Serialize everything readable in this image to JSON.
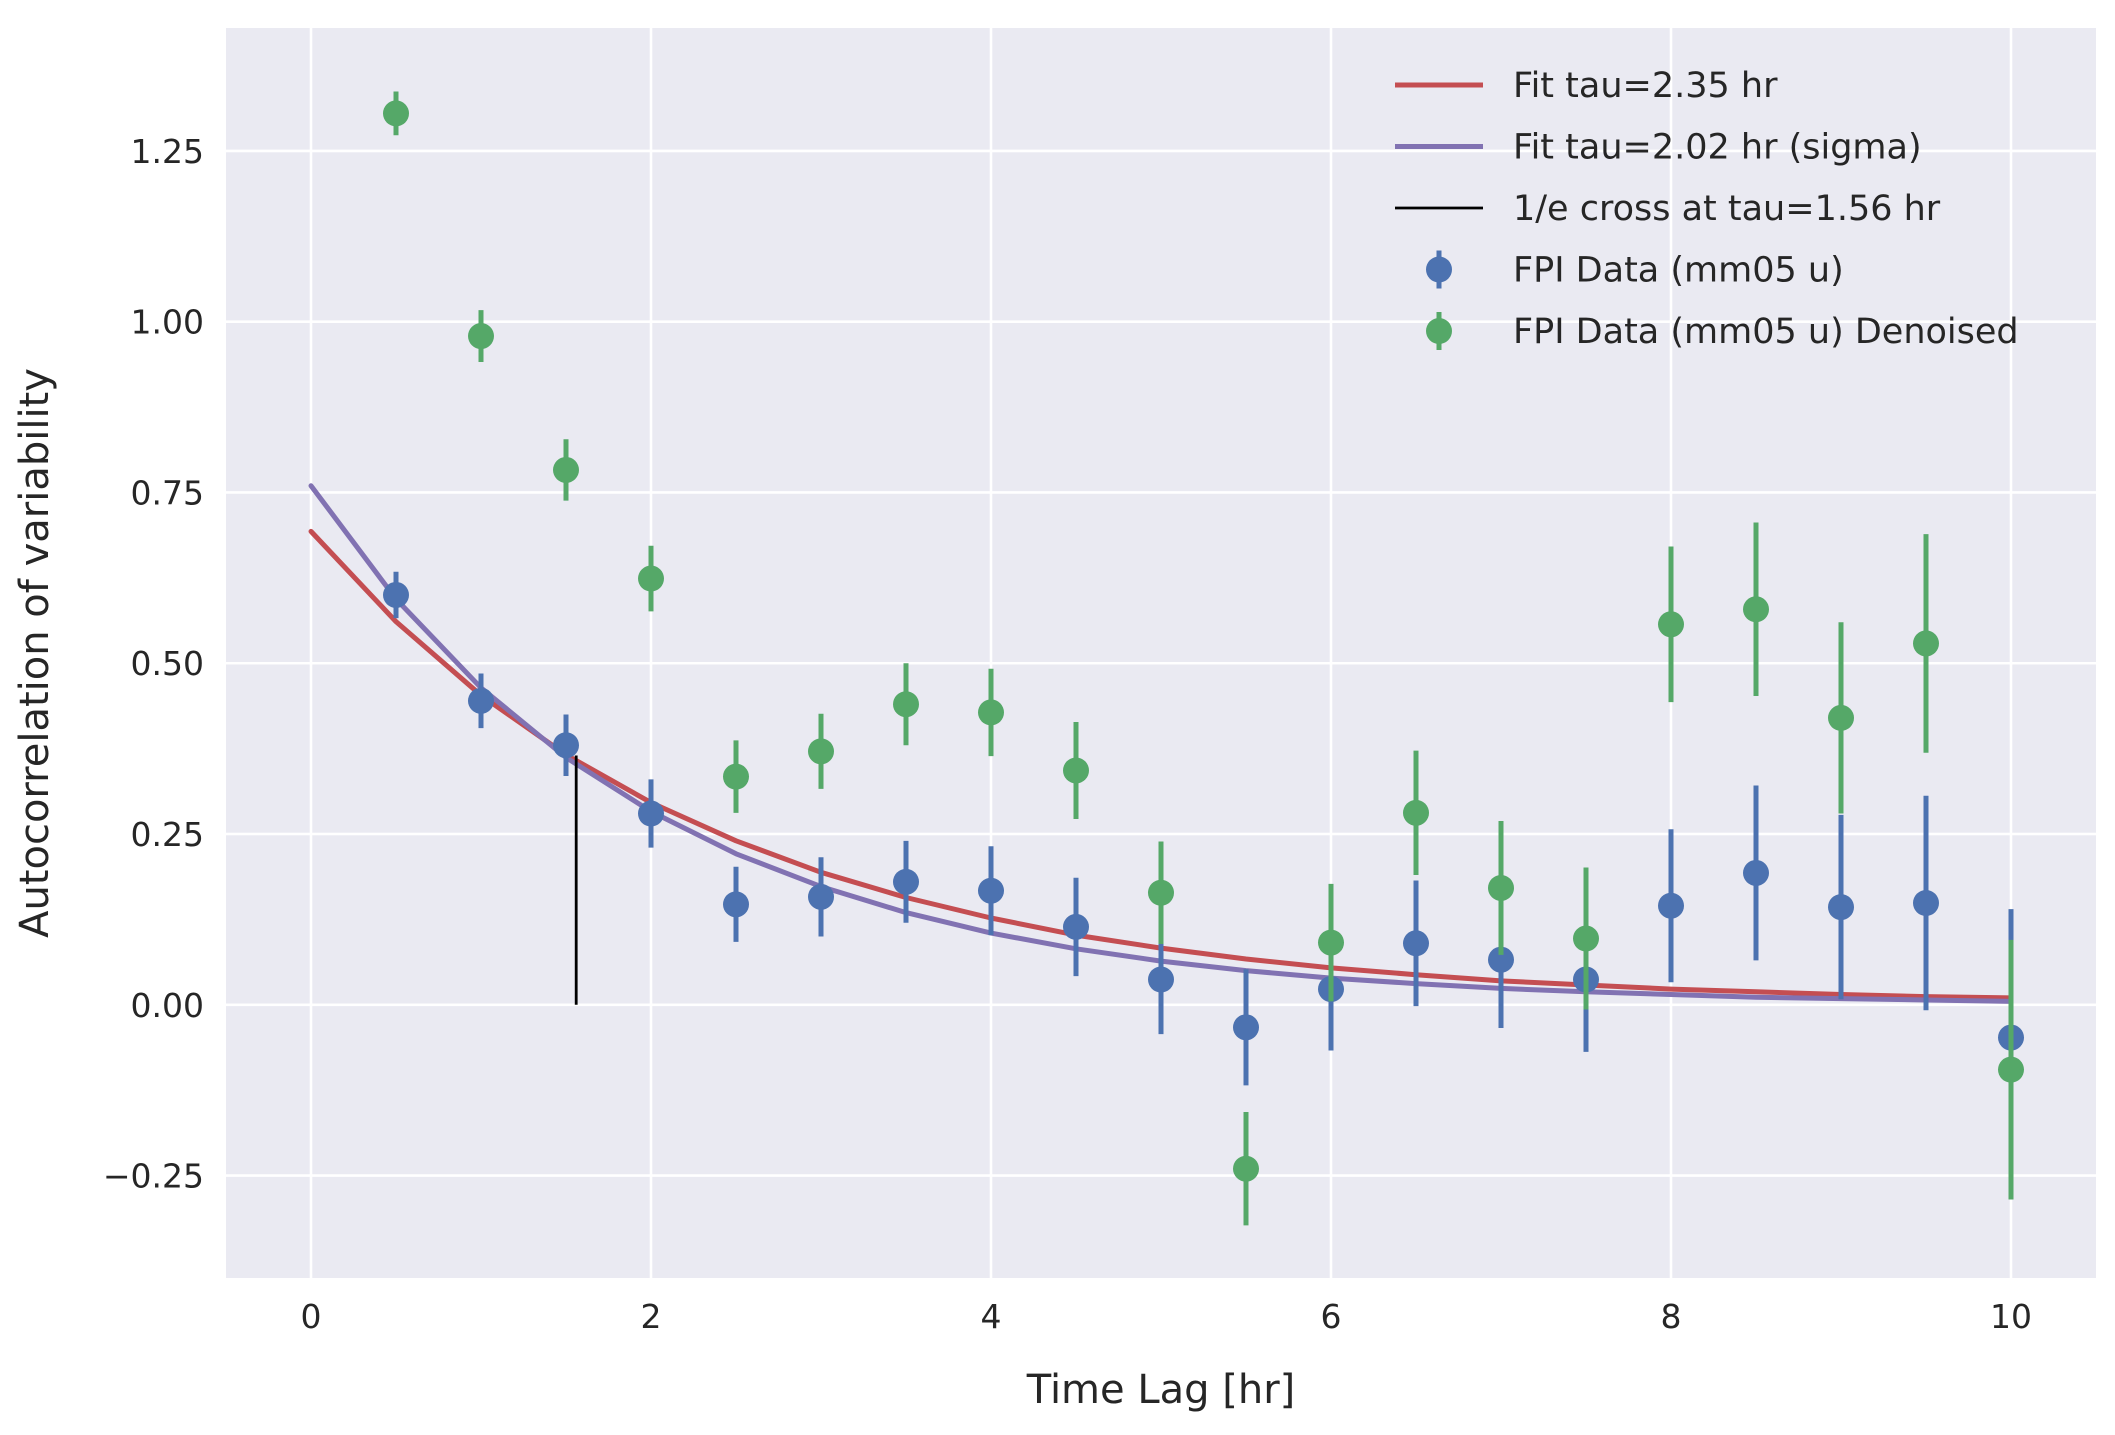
{
  "chart_data": {
    "type": "scatter",
    "xlabel": "Time Lag [hr]",
    "ylabel": "Autocorrelation of variability",
    "xlim": [
      -0.5,
      10.5
    ],
    "ylim": [
      -0.4,
      1.43
    ],
    "xticks": [
      0,
      2,
      4,
      6,
      8,
      10
    ],
    "yticks": [
      -0.25,
      0.0,
      0.25,
      0.5,
      0.75,
      1.0,
      1.25
    ],
    "xtick_labels": [
      "0",
      "2",
      "4",
      "6",
      "8",
      "10"
    ],
    "ytick_labels": [
      "−0.25",
      "0.00",
      "0.25",
      "0.50",
      "0.75",
      "1.00",
      "1.25"
    ],
    "grid": true,
    "background": "#eaeaf2",
    "legend_location": "upper right",
    "lines": [
      {
        "name": "Fit tau=2.35 hr",
        "color": "#c44e52",
        "x": [
          0,
          0.5,
          1,
          1.5,
          2,
          2.5,
          3,
          3.5,
          4,
          4.5,
          5,
          5.5,
          6,
          6.5,
          7,
          7.5,
          8,
          8.5,
          9,
          9.5,
          10
        ],
        "y": [
          0.693,
          0.561,
          0.453,
          0.366,
          0.296,
          0.24,
          0.194,
          0.157,
          0.127,
          0.102,
          0.083,
          0.067,
          0.054,
          0.044,
          0.035,
          0.029,
          0.023,
          0.019,
          0.015,
          0.012,
          0.01
        ]
      },
      {
        "name": "Fit tau=2.02 hr (sigma)",
        "color": "#8172b2",
        "x": [
          0,
          0.5,
          1,
          1.5,
          2,
          2.5,
          3,
          3.5,
          4,
          4.5,
          5,
          5.5,
          6,
          6.5,
          7,
          7.5,
          8,
          8.5,
          9,
          9.5,
          10
        ],
        "y": [
          0.76,
          0.594,
          0.464,
          0.362,
          0.283,
          0.221,
          0.173,
          0.135,
          0.105,
          0.082,
          0.064,
          0.05,
          0.039,
          0.031,
          0.024,
          0.019,
          0.015,
          0.011,
          0.009,
          0.007,
          0.005
        ]
      }
    ],
    "vline": {
      "name": "1/e cross at tau=1.56 hr",
      "color": "#000000",
      "x": 1.56,
      "y0": 0.0,
      "y1": 0.365
    },
    "series": [
      {
        "name": "FPI Data (mm05 u)",
        "color": "#4c72b0",
        "x": [
          0.5,
          1,
          1.5,
          2,
          2.5,
          3,
          3.5,
          4,
          4.5,
          5,
          5.5,
          6,
          6.5,
          7,
          7.5,
          8,
          8.5,
          9,
          9.5,
          10
        ],
        "y": [
          0.6,
          0.445,
          0.38,
          0.28,
          0.147,
          0.158,
          0.18,
          0.167,
          0.114,
          0.037,
          -0.033,
          0.023,
          0.09,
          0.066,
          0.037,
          0.145,
          0.193,
          0.143,
          0.149,
          -0.048
        ],
        "yerr": [
          0.034,
          0.04,
          0.045,
          0.05,
          0.055,
          0.058,
          0.06,
          0.065,
          0.072,
          0.08,
          0.085,
          0.09,
          0.092,
          0.1,
          0.106,
          0.112,
          0.128,
          0.135,
          0.157,
          0.188
        ]
      },
      {
        "name": "FPI Data (mm05 u) Denoised",
        "color": "#55a868",
        "x": [
          0.5,
          1,
          1.5,
          2,
          2.5,
          3,
          3.5,
          4,
          4.5,
          5,
          5.5,
          6,
          6.5,
          7,
          7.5,
          8,
          8.5,
          9,
          9.5,
          10
        ],
        "y": [
          1.305,
          0.979,
          0.783,
          0.624,
          0.334,
          0.371,
          0.44,
          0.428,
          0.343,
          0.164,
          -0.24,
          0.091,
          0.281,
          0.171,
          0.097,
          0.557,
          0.579,
          0.42,
          0.529,
          -0.095
        ],
        "yerr": [
          0.032,
          0.038,
          0.045,
          0.048,
          0.053,
          0.055,
          0.06,
          0.064,
          0.071,
          0.075,
          0.083,
          0.086,
          0.091,
          0.098,
          0.104,
          0.114,
          0.127,
          0.14,
          0.16,
          0.19
        ]
      }
    ],
    "legend": [
      {
        "label": "Fit tau=2.35 hr",
        "kind": "line",
        "color": "#c44e52"
      },
      {
        "label": "Fit tau=2.02 hr (sigma)",
        "kind": "line",
        "color": "#8172b2"
      },
      {
        "label": "1/e cross at tau=1.56 hr",
        "kind": "thin-line",
        "color": "#000000"
      },
      {
        "label": "FPI Data (mm05 u)",
        "kind": "marker",
        "color": "#4c72b0"
      },
      {
        "label": "FPI Data (mm05 u) Denoised",
        "kind": "marker",
        "color": "#55a868"
      }
    ]
  }
}
